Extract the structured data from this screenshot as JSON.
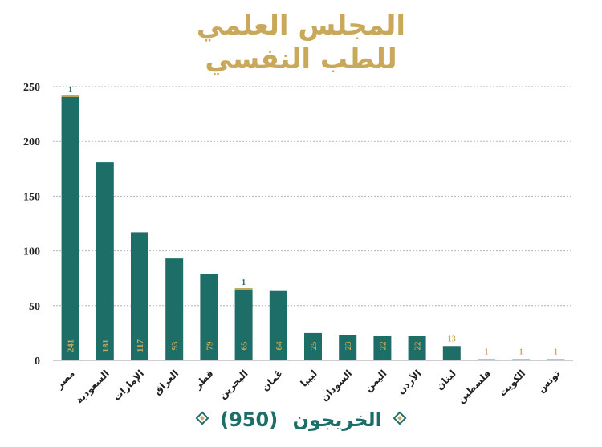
{
  "title_lines": [
    "المجلس العلمي",
    "للطب النفسي"
  ],
  "footer": {
    "label": "الخريجون",
    "total": "(950)",
    "left_icon": "diamond-icon",
    "right_icon": "diamond-icon"
  },
  "colors": {
    "bar": "#1e6e68",
    "accent": "#c9a85c",
    "grid": "#b5b5b5",
    "axis_text": "#222222"
  },
  "chart_data": {
    "type": "bar",
    "title": "المجلس العلمي للطب النفسي",
    "xlabel": "",
    "ylabel": "",
    "ylim": [
      0,
      250
    ],
    "yticks": [
      0,
      50,
      100,
      150,
      200,
      250
    ],
    "grid": true,
    "categories": [
      "مصر",
      "السعودية",
      "الإمارات",
      "العراق",
      "قطر",
      "البحرين",
      "عُمان",
      "ليبيا",
      "السودان",
      "اليمن",
      "الأردن",
      "لبنان",
      "فلسطين",
      "الكويت",
      "تونس"
    ],
    "series": [
      {
        "values": [
          241,
          181,
          117,
          93,
          79,
          65,
          64,
          25,
          23,
          22,
          22,
          13,
          1,
          1,
          1
        ]
      },
      {
        "values": [
          1,
          0,
          0,
          0,
          0,
          1,
          0,
          0,
          0,
          0,
          0,
          0,
          0,
          0,
          0
        ]
      }
    ],
    "data_labels": [
      "241",
      "181",
      "117",
      "93",
      "79",
      "65",
      "64",
      "25",
      "23",
      "22",
      "22",
      "13",
      "1",
      "1",
      "1"
    ],
    "top_labels": [
      "1",
      "",
      "",
      "",
      "",
      "1",
      "",
      "",
      "",
      "",
      "",
      "",
      "",
      "",
      ""
    ]
  }
}
